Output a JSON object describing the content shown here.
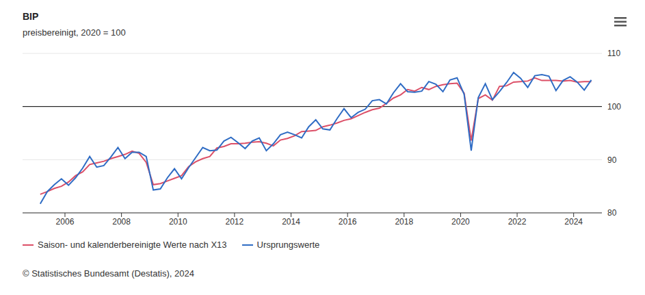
{
  "chart_data": {
    "type": "line",
    "title": "BIP",
    "subtitle": "preisbereinigt, 2020 = 100",
    "source": "© Statistisches Bundesamt (Destatis), 2024",
    "x": [
      2005.125,
      2005.375,
      2005.625,
      2005.875,
      2006.125,
      2006.375,
      2006.625,
      2006.875,
      2007.125,
      2007.375,
      2007.625,
      2007.875,
      2008.125,
      2008.375,
      2008.625,
      2008.875,
      2009.125,
      2009.375,
      2009.625,
      2009.875,
      2010.125,
      2010.375,
      2010.625,
      2010.875,
      2011.125,
      2011.375,
      2011.625,
      2011.875,
      2012.125,
      2012.375,
      2012.625,
      2012.875,
      2013.125,
      2013.375,
      2013.625,
      2013.875,
      2014.125,
      2014.375,
      2014.625,
      2014.875,
      2015.125,
      2015.375,
      2015.625,
      2015.875,
      2016.125,
      2016.375,
      2016.625,
      2016.875,
      2017.125,
      2017.375,
      2017.625,
      2017.875,
      2018.125,
      2018.375,
      2018.625,
      2018.875,
      2019.125,
      2019.375,
      2019.625,
      2019.875,
      2020.125,
      2020.375,
      2020.625,
      2020.875,
      2021.125,
      2021.375,
      2021.625,
      2021.875,
      2022.125,
      2022.375,
      2022.625,
      2022.875,
      2023.125,
      2023.375,
      2023.625,
      2023.875,
      2024.125,
      2024.375,
      2024.625
    ],
    "series": [
      {
        "name": "Saison- und kalenderbereinigte Werte nach X13",
        "color": "#dc4f67",
        "values": [
          83.5,
          84.0,
          84.6,
          85.0,
          85.8,
          87.0,
          87.7,
          89.1,
          89.4,
          89.7,
          90.2,
          90.6,
          91.0,
          91.6,
          91.2,
          89.5,
          85.3,
          85.5,
          86.0,
          86.5,
          87.0,
          88.7,
          89.6,
          90.2,
          90.6,
          92.2,
          92.5,
          93.0,
          93.0,
          93.1,
          93.3,
          93.4,
          93.1,
          92.6,
          93.7,
          94.0,
          94.5,
          95.3,
          95.4,
          95.5,
          96.2,
          96.5,
          96.9,
          97.4,
          97.7,
          98.3,
          98.9,
          99.4,
          99.7,
          100.6,
          101.6,
          102.2,
          103.2,
          102.9,
          103.6,
          103.2,
          103.8,
          104.1,
          104.3,
          104.4,
          102.5,
          93.6,
          101.5,
          102.2,
          101.2,
          103.8,
          103.9,
          104.6,
          104.7,
          104.8,
          105.4,
          104.9,
          104.9,
          104.9,
          104.8,
          104.9,
          104.6,
          104.7,
          104.7
        ]
      },
      {
        "name": "Ursprungswerte",
        "color": "#2f6cc4",
        "values": [
          81.7,
          84.0,
          85.3,
          86.4,
          85.2,
          86.6,
          88.4,
          90.6,
          88.6,
          88.9,
          90.5,
          92.3,
          90.2,
          91.4,
          91.4,
          90.6,
          84.3,
          84.5,
          86.6,
          88.3,
          86.4,
          88.5,
          90.4,
          92.3,
          91.7,
          91.8,
          93.5,
          94.2,
          93.2,
          92.1,
          93.5,
          94.1,
          91.7,
          93.0,
          94.7,
          95.2,
          94.7,
          94.1,
          96.2,
          97.5,
          95.8,
          95.6,
          97.7,
          99.6,
          97.9,
          98.9,
          99.5,
          101.1,
          101.3,
          100.5,
          102.6,
          104.3,
          102.8,
          102.7,
          102.9,
          104.7,
          104.2,
          102.8,
          105.0,
          105.4,
          102.3,
          91.7,
          101.7,
          104.3,
          101.3,
          102.8,
          104.5,
          106.4,
          105.3,
          103.6,
          105.8,
          106.0,
          105.7,
          103.0,
          104.9,
          105.6,
          104.6,
          103.1,
          105.0
        ]
      }
    ],
    "xlim": [
      2004.5,
      2025
    ],
    "xticks": [
      2006,
      2008,
      2010,
      2012,
      2014,
      2016,
      2018,
      2020,
      2022,
      2024
    ],
    "ylim": [
      80,
      110
    ],
    "yticks": [
      80,
      90,
      100,
      110
    ],
    "reference_line": 100,
    "grid": true,
    "legend": "bottom"
  }
}
